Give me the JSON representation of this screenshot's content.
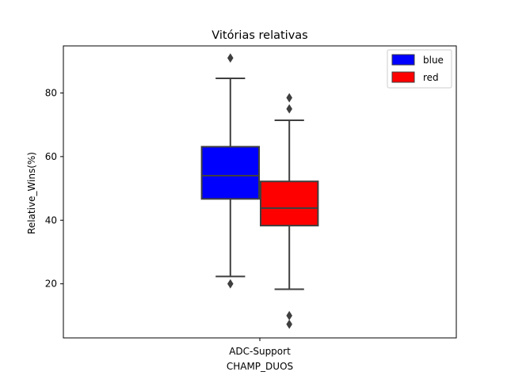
{
  "chart_data": {
    "type": "box",
    "title": "Vitórias relativas",
    "xlabel": "CHAMP_DUOS",
    "ylabel": "Relative_Wins(%)",
    "categories": [
      "ADC-Support"
    ],
    "ylim": [
      3,
      94.8
    ],
    "yticks": [
      20,
      40,
      60,
      80
    ],
    "grid": false,
    "legend": "top-right",
    "series": [
      {
        "name": "blue",
        "color": "#0000ff",
        "whisker_low": 22.3,
        "q1": 46.7,
        "median": 54.0,
        "q3": 63.1,
        "whisker_high": 84.6,
        "outliers": [
          20.0,
          91.0
        ]
      },
      {
        "name": "red",
        "color": "#ff0000",
        "whisker_low": 18.3,
        "q1": 38.3,
        "median": 43.8,
        "q3": 52.2,
        "whisker_high": 71.4,
        "outliers": [
          78.5,
          75.0,
          10.0,
          7.3
        ]
      }
    ],
    "line_color": "#3f3f3f"
  }
}
